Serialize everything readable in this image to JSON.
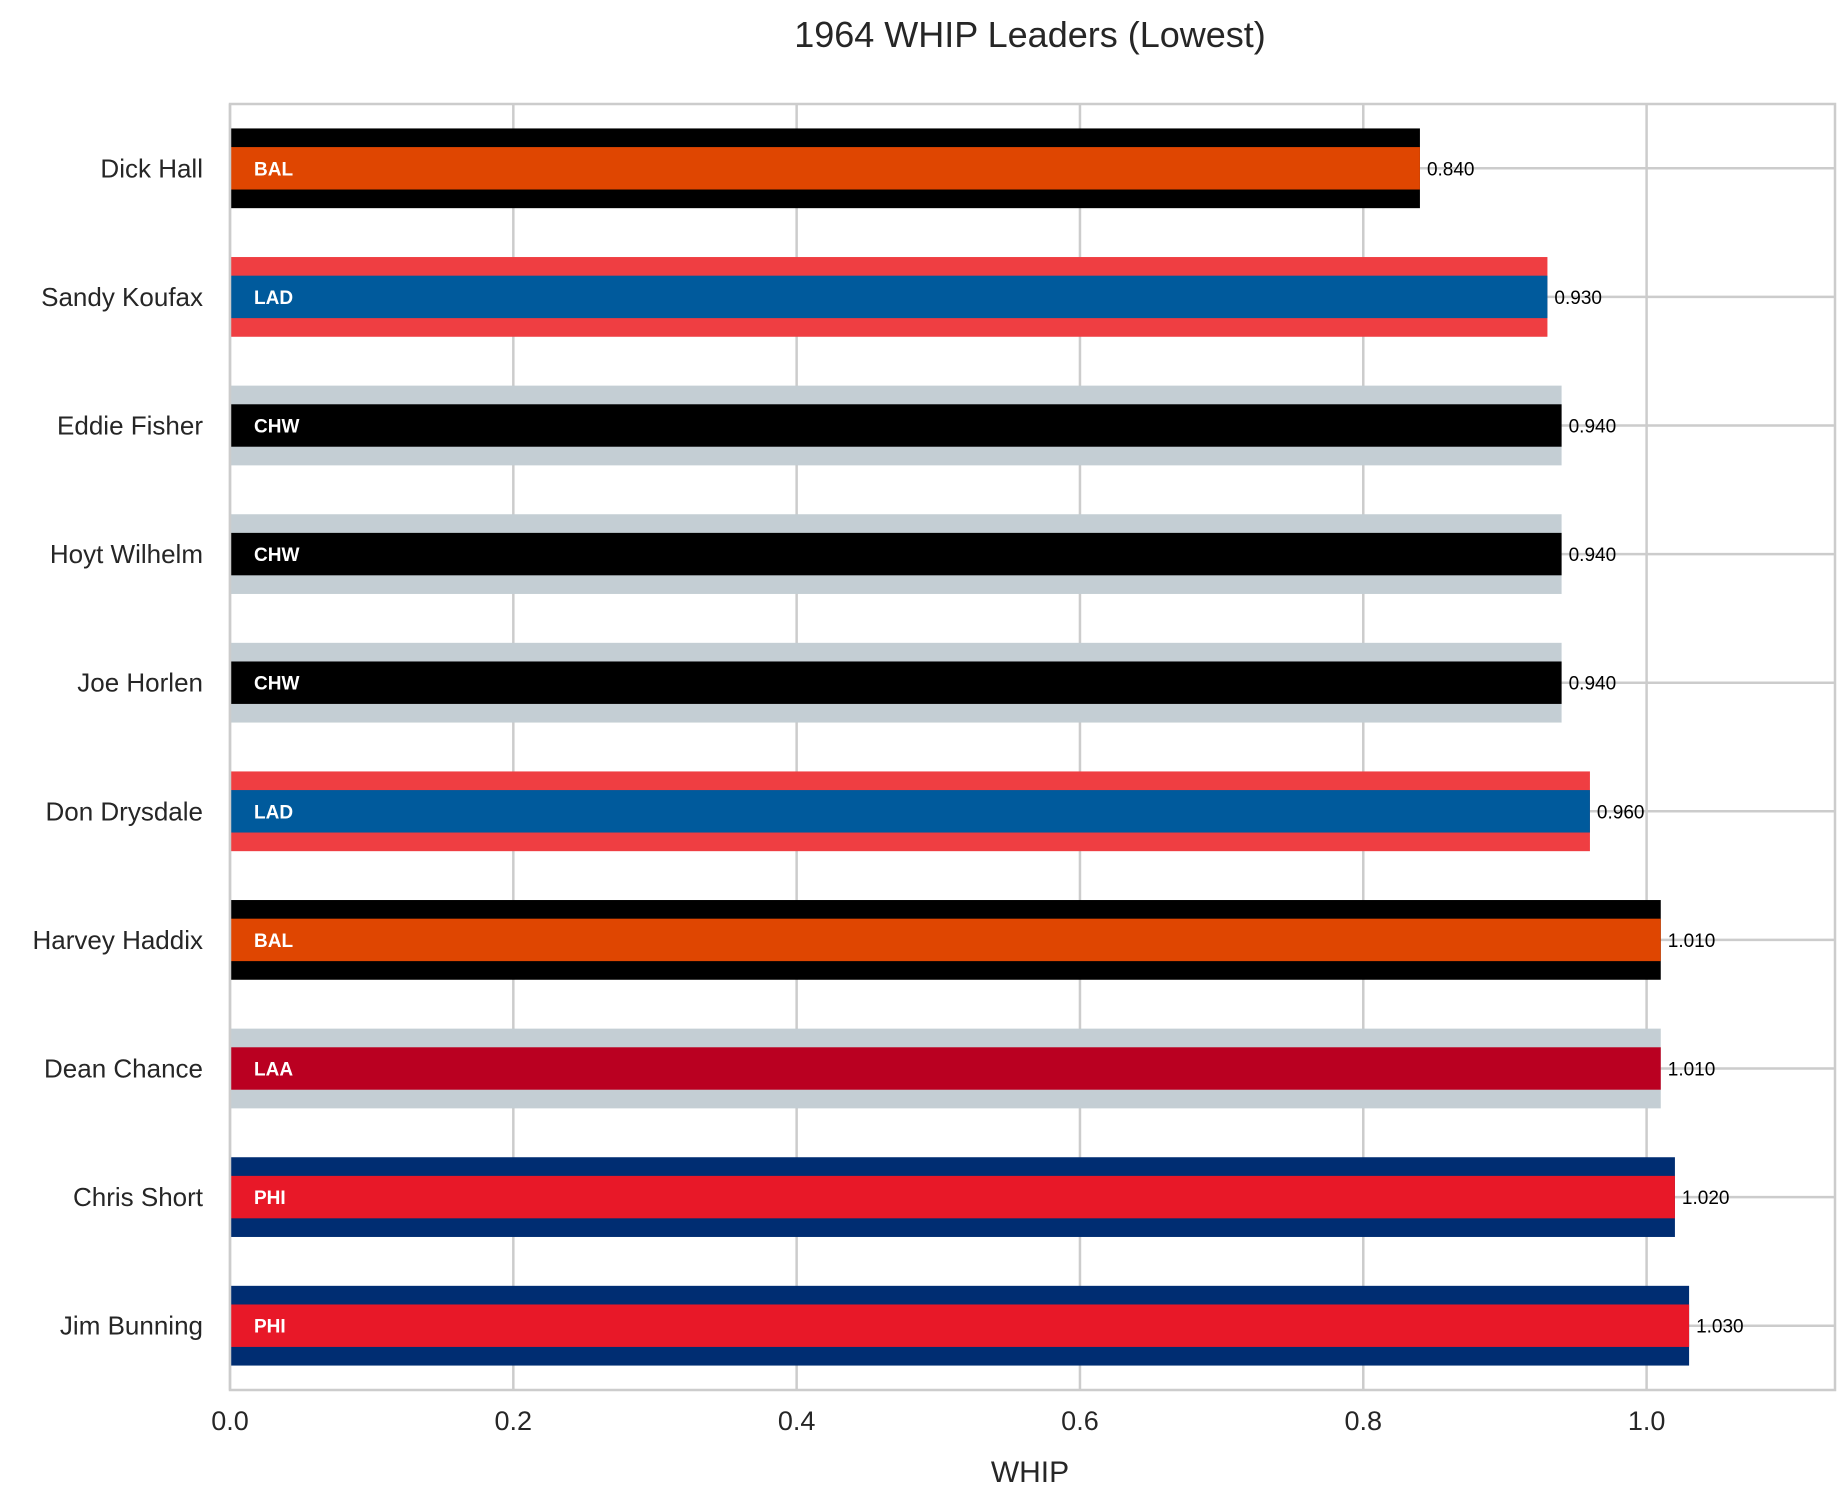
{
  "chart_data": {
    "type": "bar",
    "orientation": "horizontal",
    "title": "1964 WHIP Leaders (Lowest)",
    "xlabel": "WHIP",
    "ylabel": "",
    "xlim": [
      0,
      1.133
    ],
    "xticks": [
      0.0,
      0.2,
      0.4,
      0.6,
      0.8,
      1.0
    ],
    "xtick_labels": [
      "0.0",
      "0.2",
      "0.4",
      "0.6",
      "0.8",
      "1.0"
    ],
    "grid": true,
    "legend": "none",
    "categories": [
      "Dick Hall",
      "Sandy Koufax",
      "Eddie Fisher",
      "Hoyt Wilhelm",
      "Joe Horlen",
      "Don Drysdale",
      "Harvey Haddix",
      "Dean Chance",
      "Chris Short",
      "Jim Bunning"
    ],
    "values": [
      0.84,
      0.93,
      0.94,
      0.94,
      0.94,
      0.96,
      1.01,
      1.01,
      1.02,
      1.03
    ],
    "value_labels": [
      "0.840",
      "0.930",
      "0.940",
      "0.940",
      "0.940",
      "0.960",
      "1.010",
      "1.010",
      "1.020",
      "1.030"
    ],
    "teams": [
      "BAL",
      "LAD",
      "CHW",
      "CHW",
      "CHW",
      "LAD",
      "BAL",
      "LAA",
      "PHI",
      "PHI"
    ],
    "team_colors": {
      "BAL": {
        "primary": "#DF4601",
        "secondary": "#000000"
      },
      "LAD": {
        "primary": "#005A9C",
        "secondary": "#EF3E42"
      },
      "CHW": {
        "primary": "#000000",
        "secondary": "#C4CED4"
      },
      "LAA": {
        "primary": "#BA0021",
        "secondary": "#C4CED4"
      },
      "PHI": {
        "primary": "#E81828",
        "secondary": "#002D72"
      }
    },
    "colors": {
      "grid": "#cccccc",
      "axis_text": "#262626",
      "team_label_text": "#ffffff",
      "value_label_text": "#000000"
    }
  }
}
